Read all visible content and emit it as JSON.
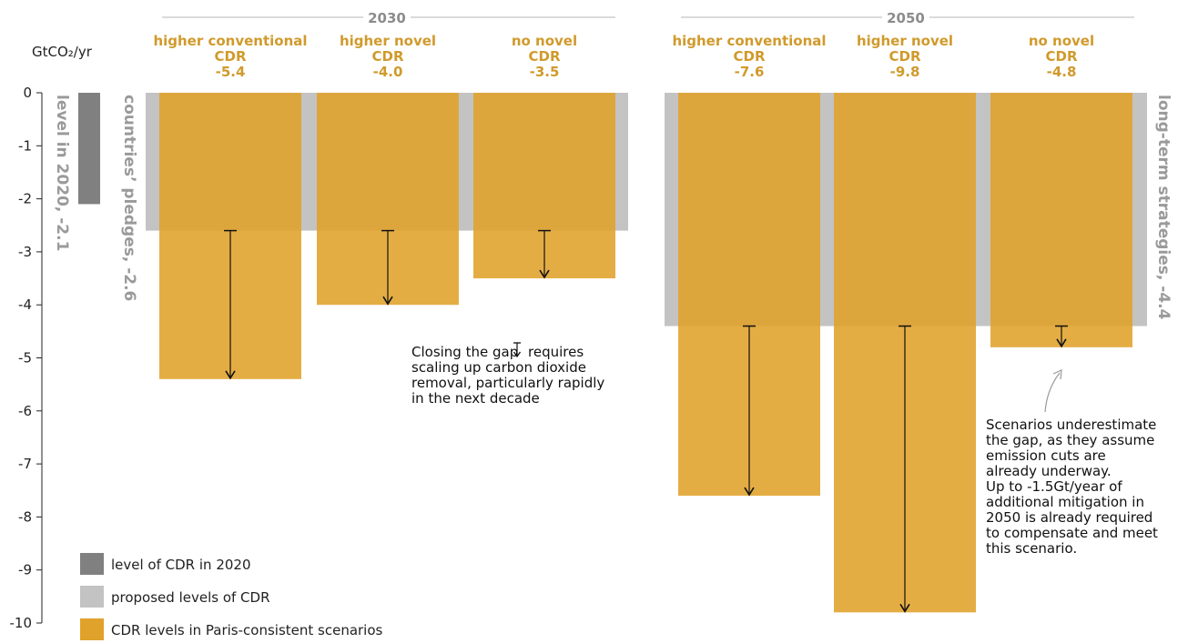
{
  "chart_data": {
    "type": "bar",
    "ylabel": "GtCO₂/yr",
    "ylim": [
      -10,
      0
    ],
    "yticks": [
      0,
      -1,
      -2,
      -3,
      -4,
      -5,
      -6,
      -7,
      -8,
      -9,
      -10
    ],
    "level_2020": {
      "value": -2.1,
      "label": "level in 2020, -2.1"
    },
    "groups": [
      {
        "name": "2030",
        "proposed": {
          "value": -2.6,
          "label": "countries’ pledges, -2.6"
        },
        "scenarios": [
          {
            "name_line1": "higher conventional",
            "name_line2": "CDR",
            "value": -5.4,
            "value_label": "-5.4"
          },
          {
            "name_line1": "higher novel",
            "name_line2": "CDR",
            "value": -4.0,
            "value_label": "-4.0"
          },
          {
            "name_line1": "no novel",
            "name_line2": "CDR",
            "value": -3.5,
            "value_label": "-3.5"
          }
        ]
      },
      {
        "name": "2050",
        "proposed": {
          "value": -4.4,
          "label": "long-term strategies, -4.4"
        },
        "scenarios": [
          {
            "name_line1": "higher conventional",
            "name_line2": "CDR",
            "value": -7.6,
            "value_label": "-7.6"
          },
          {
            "name_line1": "higher novel",
            "name_line2": "CDR",
            "value": -9.8,
            "value_label": "-9.8"
          },
          {
            "name_line1": "no novel",
            "name_line2": "CDR",
            "value": -4.8,
            "value_label": "-4.8"
          }
        ]
      }
    ],
    "annotations": [
      {
        "id": "closing-gap",
        "lines": [
          "Closing the gap",
          "scaling up carbon dioxide",
          "removal, particularly rapidly",
          "in the next decade"
        ],
        "inline_after_line1": "requires"
      },
      {
        "id": "underestimate",
        "lines": [
          "Scenarios underestimate",
          "the gap, as they assume",
          "emission cuts are",
          "already underway.",
          "Up to -1.5Gt/year of",
          "additional mitigation in",
          "2050 is already required",
          "to compensate and meet",
          "this scenario."
        ]
      }
    ],
    "legend": [
      {
        "label": "level of CDR in 2020",
        "color": "#808080"
      },
      {
        "label": "proposed levels of CDR",
        "color": "#c3c3c3"
      },
      {
        "label": "CDR levels in Paris-consistent scenarios",
        "color": "#e0a22a"
      }
    ],
    "colors": {
      "level_2020": "#808080",
      "proposed": "#c3c3c3",
      "scenario": "#e0a22a",
      "scenario_text": "#d09a2c",
      "group_text": "#8c8c8c",
      "label_text": "#9a9a9a",
      "axis": "#222222"
    }
  }
}
